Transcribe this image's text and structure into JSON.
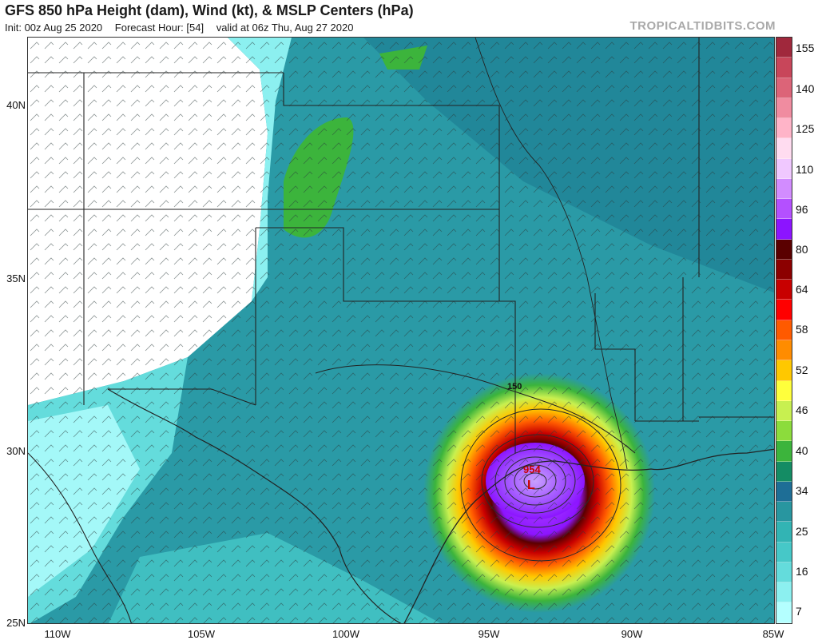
{
  "header": {
    "title": "GFS 850 hPa Height (dam), Wind (kt), & MSLP Centers (hPa)",
    "init": "Init: 00z Aug 25 2020",
    "forecast_hour": "Forecast Hour: [54]",
    "valid": "valid at 06z Thu, Aug 27 2020",
    "brand": "TROPICALTIDBITS.COM"
  },
  "axes": {
    "lat_labels": [
      "40N",
      "35N",
      "30N",
      "25N"
    ],
    "lon_labels": [
      "110W",
      "105W",
      "100W",
      "95W",
      "90W",
      "85W"
    ]
  },
  "map": {
    "contour_label": "150",
    "low_center_label": "954",
    "low_center_letter": "L"
  },
  "colorbar": {
    "labels": [
      "155",
      "140",
      "125",
      "110",
      "96",
      "80",
      "64",
      "58",
      "52",
      "46",
      "40",
      "34",
      "25",
      "16",
      "7"
    ],
    "colors": [
      "#a0283c",
      "#c8465a",
      "#dc6478",
      "#f08ca0",
      "#ffb4c8",
      "#ffdcf0",
      "#f0c8ff",
      "#d28cff",
      "#b450ff",
      "#8c14ff",
      "#5a0000",
      "#8c0000",
      "#c80000",
      "#ff0000",
      "#ff5a00",
      "#ff8c00",
      "#ffc800",
      "#ffff3c",
      "#c8f050",
      "#8cdc3c",
      "#3cb43c",
      "#148c64",
      "#1e6e96",
      "#2896a0",
      "#32b4b4",
      "#46c8c8",
      "#64dcdc",
      "#8cf0f0",
      "#b4ffff"
    ]
  }
}
